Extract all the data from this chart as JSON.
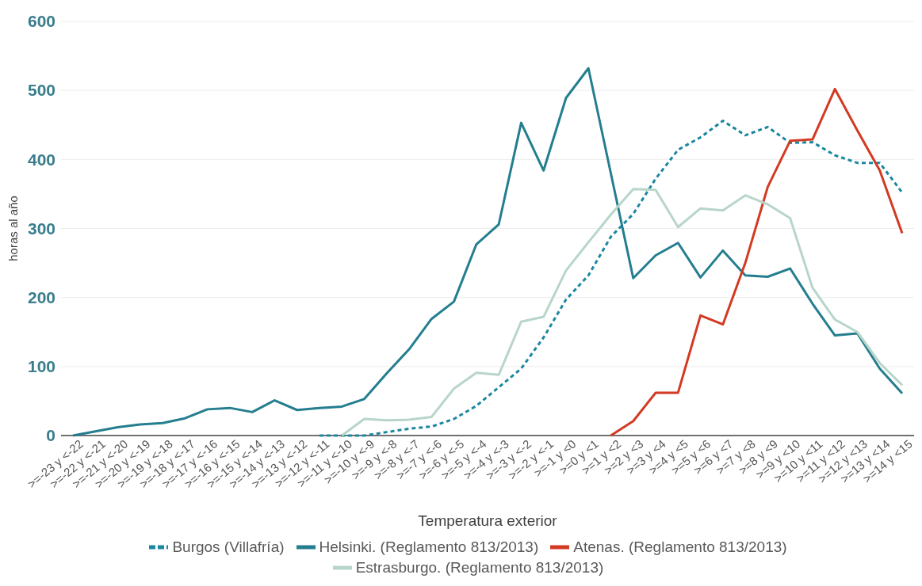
{
  "chart_data": {
    "type": "line",
    "xlabel": "Temperatura exterior",
    "ylabel": "horas al año",
    "categories": [
      ">=-23 y <-22",
      ">=-22 y <-21",
      ">=-21 y <-20",
      ">=-20 y <-19",
      ">=-19 y <-18",
      ">=-18 y <-17",
      ">=-17 y <-16",
      ">=-16 y <-15",
      ">=-15 y <-14",
      ">=-14 y <-13",
      ">=-13 y <-12",
      ">=-12 y <-11",
      ">=-11 y <-10",
      ">=-10 y <-9",
      ">=-9 y <-8",
      ">=-8 y <-7",
      ">=-7 y <-6",
      ">=-6 y <-5",
      ">=-5 y <-4",
      ">=-4 y <-3",
      ">=-3 y <-2",
      ">=-2 y <-1",
      ">=-1 y <0",
      ">=0 y <1",
      ">=1 y <2",
      ">=2 y <3",
      ">=3 y <4",
      ">=4 y <5",
      ">=5 y <6",
      ">=6 y <7",
      ">=7 y <8",
      ">=8 y <9",
      ">=9 y <10",
      ">=10 y <11",
      ">=11 y <12",
      ">=12 y <13",
      ">=13 y <14",
      ">=14 y <15"
    ],
    "series": [
      {
        "name": "Burgos (Villafría)",
        "color": "#1a87a0",
        "line_style": "dashed",
        "values": [
          null,
          null,
          null,
          null,
          null,
          null,
          null,
          null,
          null,
          null,
          null,
          0,
          0,
          0,
          5,
          10,
          13,
          24,
          43,
          70,
          97,
          142,
          197,
          232,
          288,
          321,
          372,
          414,
          432,
          456,
          435,
          447,
          424,
          425,
          406,
          395,
          395,
          352
        ]
      },
      {
        "name": "Helsinki. (Reglamento 813/2013)",
        "color": "#247e8f",
        "values": [
          0,
          6,
          12,
          16,
          18,
          25,
          38,
          40,
          34,
          51,
          37,
          40,
          42,
          53,
          90,
          125,
          169,
          194,
          277,
          306,
          453,
          384,
          489,
          532,
          380,
          228,
          261,
          279,
          229,
          268,
          232,
          230,
          242,
          191,
          145,
          148,
          97,
          61
        ]
      },
      {
        "name": "Atenas. (Reglamento 813/2013)",
        "color": "#d33a22",
        "values": [
          null,
          null,
          null,
          null,
          null,
          null,
          null,
          null,
          null,
          null,
          null,
          null,
          null,
          null,
          null,
          null,
          null,
          null,
          null,
          null,
          null,
          null,
          null,
          null,
          0,
          21,
          62,
          62,
          174,
          161,
          250,
          360,
          427,
          429,
          502,
          442,
          384,
          293
        ]
      },
      {
        "name": "Estrasburgo. (Reglamento 813/2013)",
        "color": "#b7d6c9",
        "values": [
          null,
          null,
          null,
          null,
          null,
          null,
          null,
          null,
          null,
          null,
          null,
          null,
          0,
          24,
          22,
          23,
          27,
          68,
          91,
          88,
          165,
          172,
          239,
          280,
          320,
          357,
          356,
          302,
          329,
          326,
          348,
          335,
          315,
          214,
          168,
          150,
          105,
          73
        ]
      }
    ],
    "ylim": [
      0,
      600
    ],
    "yticks": [
      0,
      100,
      200,
      300,
      400,
      500,
      600
    ],
    "grid": "y",
    "legend": "bottom",
    "marker": "none",
    "line_style": "solid"
  }
}
